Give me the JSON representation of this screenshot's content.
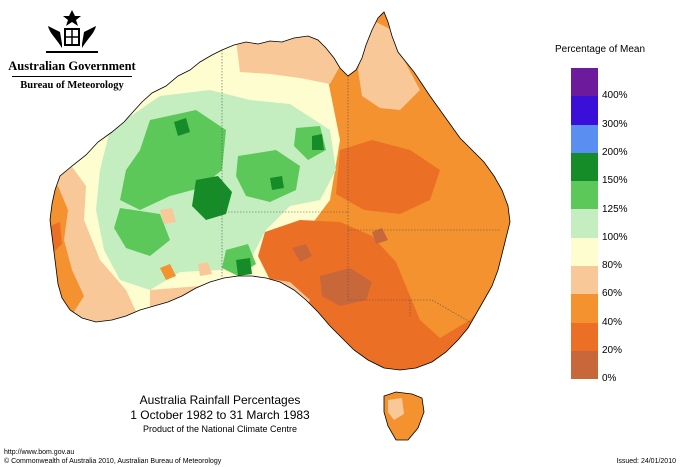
{
  "header": {
    "government": "Australian Government",
    "agency": "Bureau of Meteorology"
  },
  "legend": {
    "title": "Percentage of Mean",
    "classes": [
      {
        "label": "",
        "color": "#6e1a9c"
      },
      {
        "label": "400%",
        "color": "#3a10d8"
      },
      {
        "label": "300%",
        "color": "#5a8ef0"
      },
      {
        "label": "200%",
        "color": "#168c28"
      },
      {
        "label": "150%",
        "color": "#5cc85a"
      },
      {
        "label": "125%",
        "color": "#c4eec0"
      },
      {
        "label": "100%",
        "color": "#fdfdd0"
      },
      {
        "label": "80%",
        "color": "#f8c898"
      },
      {
        "label": "60%",
        "color": "#f3922e"
      },
      {
        "label": "40%",
        "color": "#ec6f26"
      },
      {
        "label": "20%",
        "color": "#c8673a"
      },
      {
        "label": "0%",
        "color": ""
      }
    ]
  },
  "map_title": {
    "line1": "Australia Rainfall Percentages",
    "line2": "1 October 1982 to 31 March 1983",
    "line3": "Product of the National Climate Centre"
  },
  "footer": {
    "url": "http://www.bom.gov.au",
    "copyright": "© Commonwealth of Australia 2010, Australian Bureau of Meteorology",
    "issued": "Issued: 24/01/2010"
  },
  "colors": {
    "very_much_above": "#168c28",
    "above": "#5cc85a",
    "slightly_above": "#c4eec0",
    "near_average": "#fdfdd0",
    "below": "#f8c898",
    "well_below": "#f3922e",
    "very_below": "#ec6f26",
    "lowest": "#c8673a"
  }
}
